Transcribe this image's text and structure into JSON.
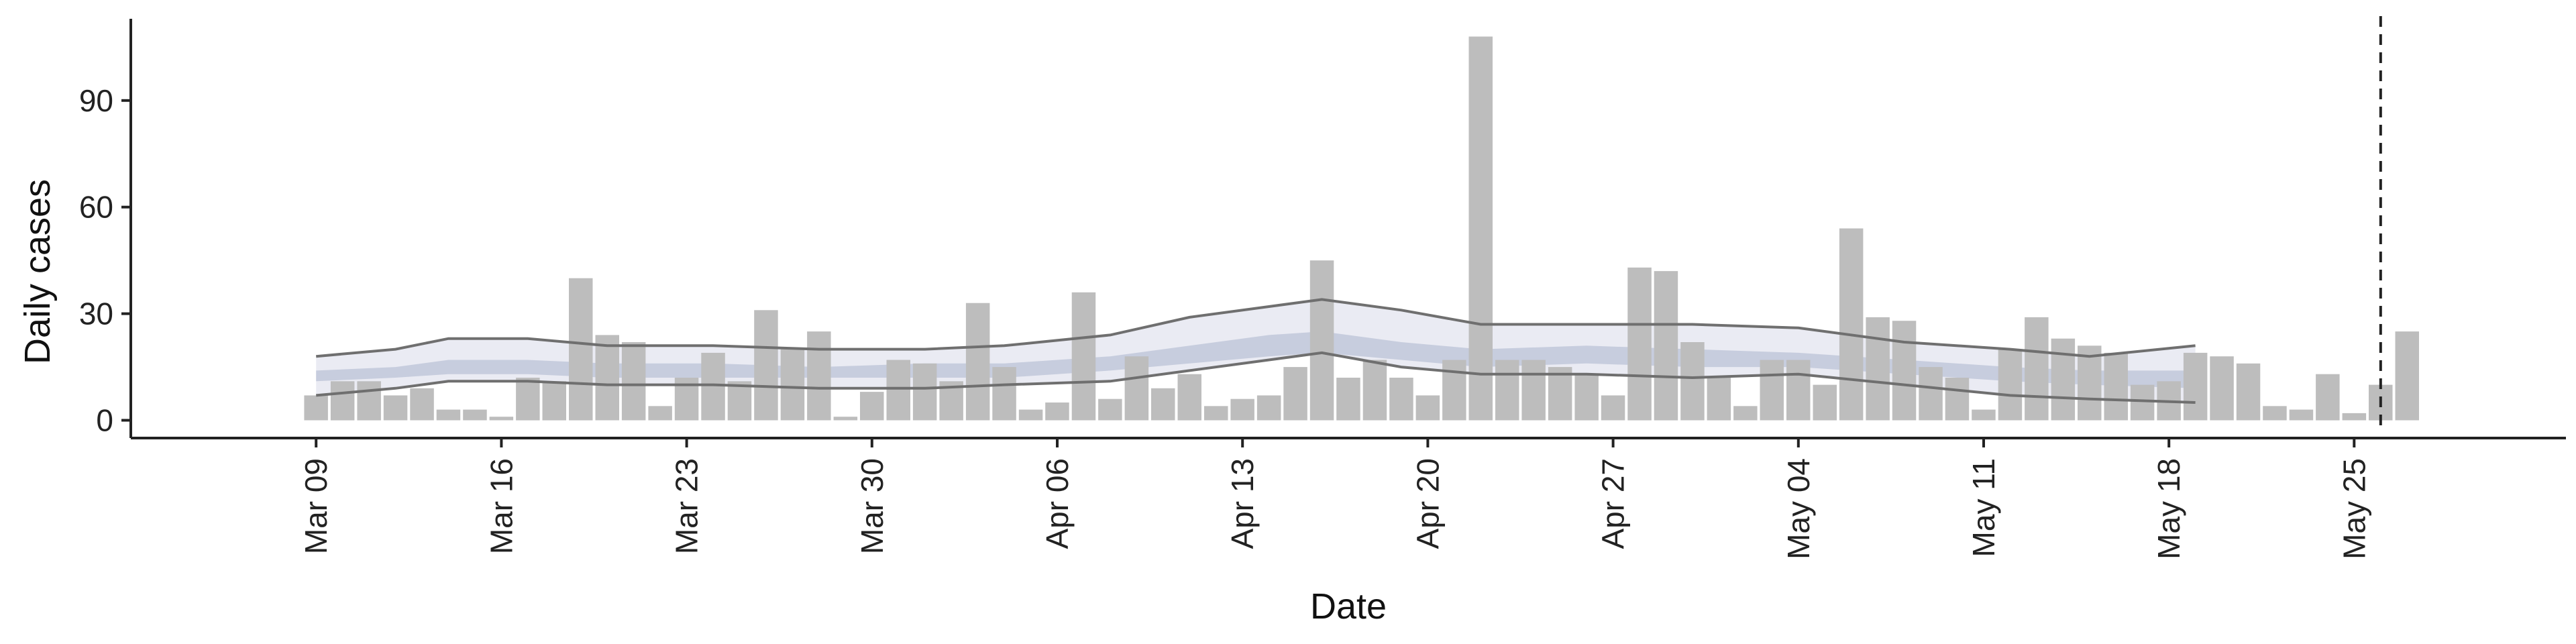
{
  "chart_data": {
    "type": "bar",
    "xlabel": "Date",
    "ylabel": "Daily cases",
    "ylim": [
      -5,
      113
    ],
    "yticks": [
      0,
      30,
      60,
      90
    ],
    "xticks": [
      {
        "date": "2020-03-09",
        "label": "Mar 09"
      },
      {
        "date": "2020-03-16",
        "label": "Mar 16"
      },
      {
        "date": "2020-03-23",
        "label": "Mar 23"
      },
      {
        "date": "2020-03-30",
        "label": "Mar 30"
      },
      {
        "date": "2020-04-06",
        "label": "Apr 06"
      },
      {
        "date": "2020-04-13",
        "label": "Apr 13"
      },
      {
        "date": "2020-04-20",
        "label": "Apr 20"
      },
      {
        "date": "2020-04-27",
        "label": "Apr 27"
      },
      {
        "date": "2020-05-04",
        "label": "May 04"
      },
      {
        "date": "2020-05-11",
        "label": "May 11"
      },
      {
        "date": "2020-05-18",
        "label": "May 18"
      },
      {
        "date": "2020-05-25",
        "label": "May 25"
      }
    ],
    "xlim": [
      "2020-03-02",
      "2020-06-02"
    ],
    "vline_date": "2020-05-26",
    "grid": false,
    "colors": {
      "bars": "#bdbdbd",
      "outer_band": "#eaebf3",
      "inner_band": "#c3cadb",
      "bound_lines": "#6f6f6f",
      "tail_lines": "#c8c8c8",
      "vline": "#222222",
      "axis": "#222222"
    },
    "series": [
      {
        "type": "bar",
        "x": [
          "2020-03-09",
          "2020-03-10",
          "2020-03-11",
          "2020-03-12",
          "2020-03-13",
          "2020-03-14",
          "2020-03-15",
          "2020-03-16",
          "2020-03-17",
          "2020-03-18",
          "2020-03-19",
          "2020-03-20",
          "2020-03-21",
          "2020-03-22",
          "2020-03-23",
          "2020-03-24",
          "2020-03-25",
          "2020-03-26",
          "2020-03-27",
          "2020-03-28",
          "2020-03-29",
          "2020-03-30",
          "2020-03-31",
          "2020-04-01",
          "2020-04-02",
          "2020-04-03",
          "2020-04-04",
          "2020-04-05",
          "2020-04-06",
          "2020-04-07",
          "2020-04-08",
          "2020-04-09",
          "2020-04-10",
          "2020-04-11",
          "2020-04-12",
          "2020-04-13",
          "2020-04-14",
          "2020-04-15",
          "2020-04-16",
          "2020-04-17",
          "2020-04-18",
          "2020-04-19",
          "2020-04-20",
          "2020-04-21",
          "2020-04-22",
          "2020-04-23",
          "2020-04-24",
          "2020-04-25",
          "2020-04-26",
          "2020-04-27",
          "2020-04-28",
          "2020-04-29",
          "2020-04-30",
          "2020-05-01",
          "2020-05-02",
          "2020-05-03",
          "2020-05-04",
          "2020-05-05",
          "2020-05-06",
          "2020-05-07",
          "2020-05-08",
          "2020-05-09",
          "2020-05-10",
          "2020-05-11",
          "2020-05-12",
          "2020-05-13",
          "2020-05-14",
          "2020-05-15",
          "2020-05-16",
          "2020-05-17",
          "2020-05-18",
          "2020-05-19",
          "2020-05-20",
          "2020-05-21",
          "2020-05-22",
          "2020-05-23",
          "2020-05-24",
          "2020-05-25",
          "2020-05-26",
          "2020-05-27"
        ],
        "values": [
          7,
          11,
          11,
          7,
          9,
          3,
          3,
          1,
          12,
          11,
          40,
          24,
          22,
          4,
          12,
          19,
          11,
          31,
          20,
          25,
          1,
          8,
          17,
          16,
          11,
          33,
          15,
          3,
          5,
          36,
          6,
          18,
          9,
          13,
          4,
          6,
          7,
          15,
          45,
          12,
          17,
          12,
          7,
          17,
          108,
          17,
          17,
          15,
          13,
          7,
          43,
          42,
          22,
          12,
          4,
          17,
          17,
          10,
          54,
          29,
          28,
          15,
          12,
          3,
          20,
          29,
          23,
          21,
          19,
          10,
          11,
          19,
          18,
          16,
          4,
          3,
          13,
          2,
          10,
          25
        ]
      },
      {
        "type": "band",
        "name_role": "outer",
        "x": [
          "2020-03-09",
          "2020-03-12",
          "2020-03-14",
          "2020-03-17",
          "2020-03-20",
          "2020-03-24",
          "2020-03-28",
          "2020-04-01",
          "2020-04-04",
          "2020-04-08",
          "2020-04-11",
          "2020-04-14",
          "2020-04-16",
          "2020-04-19",
          "2020-04-22",
          "2020-04-26",
          "2020-04-30",
          "2020-05-04",
          "2020-05-08",
          "2020-05-12",
          "2020-05-15",
          "2020-05-19"
        ],
        "upper": [
          18,
          20,
          23,
          23,
          21,
          21,
          20,
          20,
          21,
          24,
          29,
          32,
          34,
          31,
          27,
          27,
          27,
          26,
          22,
          20,
          18,
          21
        ],
        "lower": [
          7,
          9,
          11,
          11,
          10,
          10,
          9,
          9,
          10,
          11,
          14,
          17,
          19,
          15,
          13,
          13,
          12,
          13,
          10,
          7,
          6,
          5
        ]
      },
      {
        "type": "band",
        "name_role": "inner",
        "x": [
          "2020-03-09",
          "2020-03-12",
          "2020-03-14",
          "2020-03-17",
          "2020-03-20",
          "2020-03-24",
          "2020-03-28",
          "2020-04-01",
          "2020-04-04",
          "2020-04-08",
          "2020-04-11",
          "2020-04-14",
          "2020-04-16",
          "2020-04-19",
          "2020-04-22",
          "2020-04-26",
          "2020-04-30",
          "2020-05-04",
          "2020-05-08",
          "2020-05-12",
          "2020-05-15",
          "2020-05-19"
        ],
        "upper": [
          14,
          15,
          17,
          17,
          16,
          16,
          15,
          16,
          16,
          18,
          21,
          24,
          25,
          22,
          20,
          21,
          20,
          19,
          17,
          15,
          14,
          14
        ],
        "lower": [
          11,
          12,
          13,
          13,
          12,
          12,
          12,
          12,
          12,
          14,
          16,
          18,
          19,
          17,
          15,
          16,
          15,
          15,
          13,
          11,
          10,
          9
        ]
      }
    ]
  }
}
